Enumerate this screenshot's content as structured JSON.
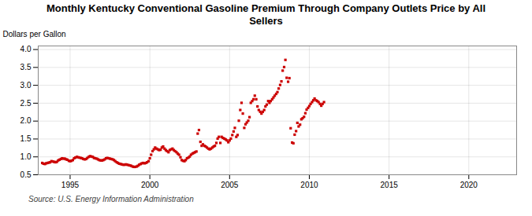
{
  "chart_data": {
    "type": "scatter",
    "title": "Monthly Kentucky Conventional Gasoline Premium Through Company Outlets Price by All\nSellers",
    "ylabel": "Dollars per Gallon",
    "source": "Source: U.S. Energy Information Administration",
    "color": "#cc0000",
    "marker": "square",
    "grid": true,
    "xlim": [
      1993.0,
      2023.0
    ],
    "ylim": [
      0.5,
      4.1
    ],
    "xticks": [
      1995,
      2000,
      2005,
      2010,
      2015,
      2020
    ],
    "yticks": [
      0.5,
      {
        "value": 1.0,
        "label": "1.0"
      },
      1.5,
      {
        "value": 2.0,
        "label": "2.0"
      },
      2.5,
      {
        "value": 3.0,
        "label": "3.0"
      },
      3.5,
      {
        "value": 4.0,
        "label": "4.0"
      }
    ],
    "x": [
      1993.25,
      1993.33,
      1993.42,
      1993.5,
      1993.58,
      1993.67,
      1993.75,
      1993.83,
      1993.92,
      1994.0,
      1994.08,
      1994.17,
      1994.25,
      1994.33,
      1994.42,
      1994.5,
      1994.58,
      1994.67,
      1994.75,
      1994.83,
      1994.92,
      1995.0,
      1995.08,
      1995.17,
      1995.25,
      1995.33,
      1995.42,
      1995.5,
      1995.58,
      1995.67,
      1995.75,
      1995.83,
      1995.92,
      1996.0,
      1996.08,
      1996.17,
      1996.25,
      1996.33,
      1996.42,
      1996.5,
      1996.58,
      1996.67,
      1996.75,
      1996.83,
      1996.92,
      1997.0,
      1997.08,
      1997.17,
      1997.25,
      1997.33,
      1997.42,
      1997.5,
      1997.58,
      1997.67,
      1997.75,
      1997.83,
      1997.92,
      1998.0,
      1998.08,
      1998.17,
      1998.25,
      1998.33,
      1998.42,
      1998.5,
      1998.58,
      1998.67,
      1998.75,
      1998.83,
      1998.92,
      1999.0,
      1999.08,
      1999.17,
      1999.25,
      1999.33,
      1999.42,
      1999.5,
      1999.58,
      1999.67,
      1999.75,
      1999.83,
      1999.92,
      2000.0,
      2000.08,
      2000.17,
      2000.25,
      2000.33,
      2000.42,
      2000.5,
      2000.58,
      2000.67,
      2000.75,
      2000.83,
      2000.92,
      2001.0,
      2001.08,
      2001.17,
      2001.25,
      2001.33,
      2001.42,
      2001.5,
      2001.58,
      2001.67,
      2001.75,
      2001.83,
      2001.92,
      2002.0,
      2002.08,
      2002.17,
      2002.25,
      2002.33,
      2002.42,
      2002.5,
      2002.58,
      2002.67,
      2002.75,
      2002.83,
      2002.92,
      2003.0,
      2003.08,
      2003.17,
      2003.25,
      2003.33,
      2003.42,
      2003.5,
      2003.58,
      2003.67,
      2003.75,
      2003.83,
      2003.92,
      2004.0,
      2004.08,
      2004.17,
      2004.25,
      2004.33,
      2004.42,
      2004.5,
      2004.58,
      2004.67,
      2004.75,
      2004.83,
      2004.92,
      2005.0,
      2005.08,
      2005.17,
      2005.25,
      2005.33,
      2005.42,
      2005.5,
      2005.58,
      2005.67,
      2005.75,
      2005.83,
      2005.92,
      2006.0,
      2006.08,
      2006.17,
      2006.25,
      2006.33,
      2006.42,
      2006.5,
      2006.58,
      2006.67,
      2006.75,
      2006.83,
      2006.92,
      2007.0,
      2007.08,
      2007.17,
      2007.25,
      2007.33,
      2007.42,
      2007.5,
      2007.58,
      2007.67,
      2007.75,
      2007.83,
      2007.92,
      2008.0,
      2008.08,
      2008.17,
      2008.25,
      2008.33,
      2008.42,
      2008.5,
      2008.58,
      2008.67,
      2008.75,
      2008.83,
      2008.92,
      2009.0,
      2009.08,
      2009.17,
      2009.25,
      2009.33,
      2009.42,
      2009.5,
      2009.58,
      2009.67,
      2009.75,
      2009.83,
      2009.92,
      2010.0,
      2010.08,
      2010.17,
      2010.25,
      2010.33,
      2010.42,
      2010.5,
      2010.58,
      2010.67,
      2010.75,
      2010.83,
      2010.92
    ],
    "values": [
      0.83,
      0.81,
      0.8,
      0.82,
      0.83,
      0.84,
      0.85,
      0.88,
      0.87,
      0.86,
      0.85,
      0.86,
      0.9,
      0.92,
      0.94,
      0.96,
      0.95,
      0.95,
      0.93,
      0.92,
      0.89,
      0.88,
      0.89,
      0.91,
      0.96,
      0.98,
      1.0,
      0.99,
      0.98,
      0.97,
      0.96,
      0.94,
      0.93,
      0.94,
      0.97,
      1.0,
      1.02,
      1.01,
      1.0,
      0.97,
      0.96,
      0.95,
      0.93,
      0.91,
      0.9,
      0.9,
      0.91,
      0.93,
      0.96,
      0.97,
      0.96,
      0.95,
      0.94,
      0.93,
      0.91,
      0.88,
      0.85,
      0.83,
      0.81,
      0.8,
      0.79,
      0.78,
      0.78,
      0.79,
      0.78,
      0.77,
      0.76,
      0.75,
      0.73,
      0.72,
      0.72,
      0.73,
      0.75,
      0.78,
      0.8,
      0.82,
      0.83,
      0.82,
      0.83,
      0.85,
      0.88,
      0.96,
      1.06,
      1.16,
      1.21,
      1.26,
      1.23,
      1.21,
      1.19,
      1.2,
      1.26,
      1.29,
      1.23,
      1.19,
      1.16,
      1.13,
      1.19,
      1.21,
      1.23,
      1.19,
      1.16,
      1.13,
      1.09,
      1.06,
      0.99,
      0.91,
      0.89,
      0.88,
      0.91,
      0.96,
      0.98,
      1.01,
      1.06,
      1.09,
      1.11,
      1.13,
      1.15,
      1.65,
      1.75,
      1.42,
      1.31,
      1.35,
      1.31,
      1.29,
      1.26,
      1.23,
      1.21,
      1.23,
      1.26,
      1.29,
      1.31,
      1.39,
      1.51,
      1.56,
      1.39,
      1.56,
      1.53,
      1.51,
      1.49,
      1.46,
      1.41,
      1.46,
      1.51,
      1.61,
      1.71,
      1.81,
      1.56,
      1.61,
      2.01,
      2.31,
      2.51,
      2.21,
      1.81,
      1.91,
      1.96,
      2.01,
      2.11,
      2.51,
      2.56,
      2.61,
      2.71,
      2.61,
      2.41,
      2.31,
      2.26,
      2.21,
      2.26,
      2.31,
      2.41,
      2.46,
      2.56,
      2.51,
      2.56,
      2.61,
      2.66,
      2.71,
      2.76,
      2.81,
      2.91,
      3.01,
      3.11,
      3.41,
      3.51,
      3.71,
      3.21,
      3.1,
      3.2,
      1.8,
      1.4,
      1.38,
      1.62,
      1.72,
      1.95,
      1.85,
      1.9,
      2.05,
      2.08,
      2.12,
      2.22,
      2.32,
      2.37,
      2.42,
      2.48,
      2.53,
      2.58,
      2.63,
      2.58,
      2.56,
      2.53,
      2.48,
      2.43,
      2.48,
      2.53
    ]
  }
}
